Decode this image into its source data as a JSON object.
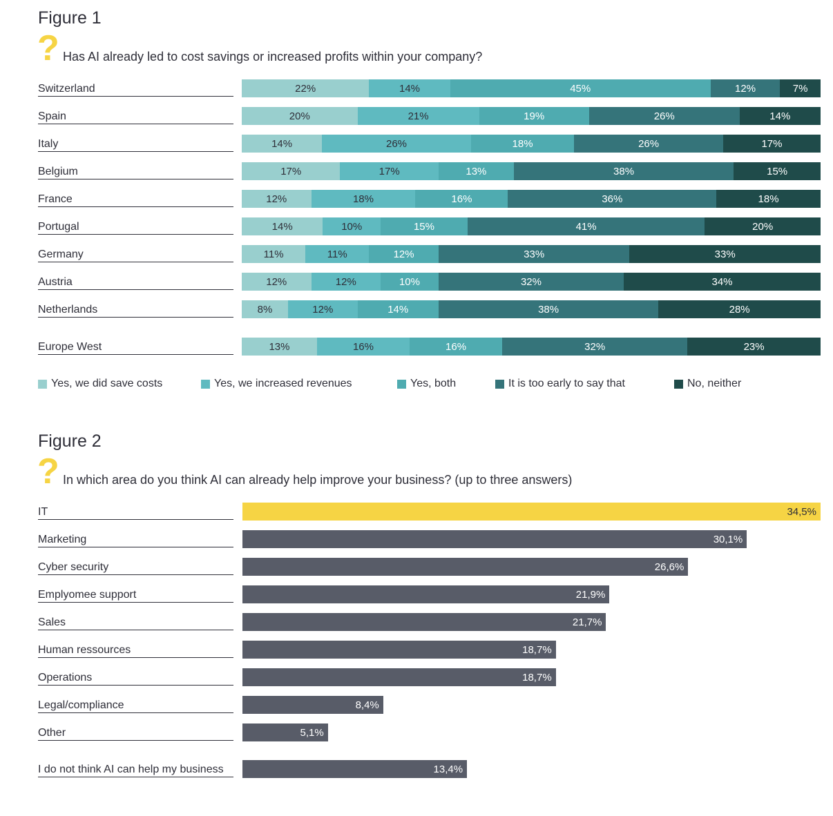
{
  "figure1": {
    "title": "Figure 1",
    "qmark": "?",
    "question": "Has AI already led to cost savings or increased profits within your company?"
  },
  "figure2": {
    "title": "Figure 2",
    "qmark": "?",
    "question": "In which area do you think AI can already help improve your business? (up to three answers)"
  },
  "chart_data": [
    {
      "type": "bar",
      "orientation": "horizontal",
      "stacked": true,
      "title": "Has AI already led to cost savings or increased profits within your company?",
      "categories": [
        "Switzerland",
        "Spain",
        "Italy",
        "Belgium",
        "France",
        "Portugal",
        "Germany",
        "Austria",
        "Netherlands",
        "Europe West"
      ],
      "series": [
        {
          "name": "Yes, we did save costs",
          "color": "#99cfce",
          "text_color": "#2e2e38",
          "values": [
            22,
            20,
            14,
            17,
            12,
            14,
            11,
            12,
            8,
            13
          ]
        },
        {
          "name": "Yes, we increased revenues",
          "color": "#5fbac0",
          "text_color": "#2e2e38",
          "values": [
            14,
            21,
            26,
            17,
            18,
            10,
            11,
            12,
            12,
            16
          ]
        },
        {
          "name": "Yes, both",
          "color": "#4fabb0",
          "text_color": "#ffffff",
          "values": [
            45,
            19,
            18,
            13,
            16,
            15,
            12,
            10,
            14,
            16
          ]
        },
        {
          "name": "It is too early to say that",
          "color": "#35747a",
          "text_color": "#ffffff",
          "values": [
            12,
            26,
            26,
            38,
            36,
            41,
            33,
            32,
            38,
            32
          ]
        },
        {
          "name": "No, neither",
          "color": "#1f4b4a",
          "text_color": "#ffffff",
          "values": [
            7,
            14,
            17,
            15,
            18,
            20,
            33,
            34,
            28,
            23
          ]
        }
      ],
      "value_suffix": "%",
      "legend": "bottom"
    },
    {
      "type": "bar",
      "orientation": "horizontal",
      "title": "In which area do you think AI can already help improve your business? (up to three answers)",
      "categories": [
        "IT",
        "Marketing",
        "Cyber security",
        "Emplyomee support",
        "Sales",
        "Human ressources",
        "Operations",
        "Legal/compliance",
        "Other",
        "I do not think AI can help my business"
      ],
      "values": [
        34.5,
        30.1,
        26.6,
        21.9,
        21.7,
        18.7,
        18.7,
        8.4,
        5.1,
        13.4
      ],
      "labels": [
        "34,5%",
        "30,1%",
        "26,6%",
        "21,9%",
        "21,7%",
        "18,7%",
        "18,7%",
        "8,4%",
        "5,1%",
        "13,4%"
      ],
      "highlight_color": "#f6d444",
      "bar_color": "#585c68",
      "xlim": [
        0,
        34.5
      ]
    }
  ]
}
